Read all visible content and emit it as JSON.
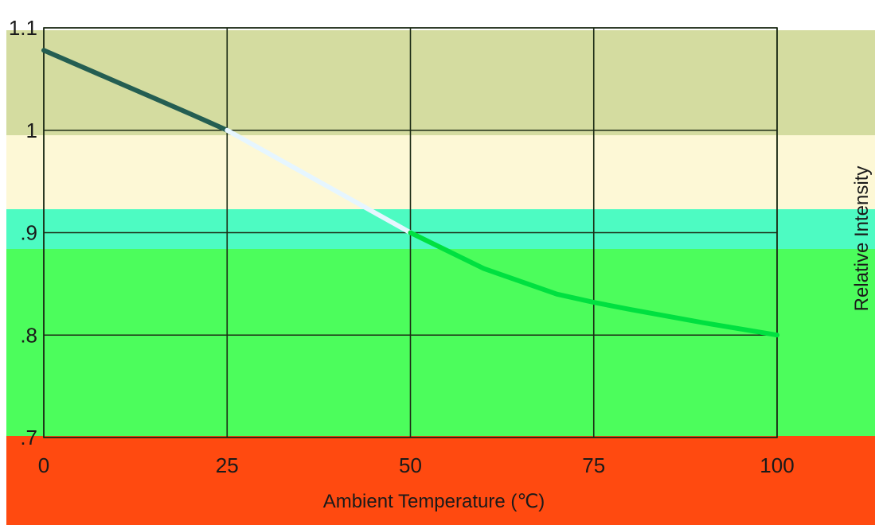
{
  "chart_data": {
    "type": "line",
    "title": "",
    "xlabel": "Ambient Temperature (℃)",
    "ylabel": "Relative Intensity",
    "xlim": [
      0,
      100
    ],
    "ylim": [
      0.7,
      1.1
    ],
    "x_ticks": [
      0,
      25,
      50,
      75,
      100
    ],
    "y_ticks": [
      0.7,
      0.8,
      0.9,
      1.0,
      1.1
    ],
    "x_tick_labels": [
      "0",
      "25",
      "50",
      "75",
      "100"
    ],
    "y_tick_labels": [
      ".7",
      ".8",
      ".9",
      "1",
      "1.1"
    ],
    "grid": true,
    "series": [
      {
        "x": [
          0,
          10,
          20,
          25,
          30,
          40,
          50,
          60,
          70,
          75,
          80,
          90,
          100
        ],
        "y": [
          1.078,
          1.047,
          1.016,
          1.0,
          0.98,
          0.94,
          0.9,
          0.865,
          0.84,
          0.832,
          0.825,
          0.812,
          0.8
        ]
      }
    ],
    "band_colors": [
      "#d4dca0",
      "#fdf8d6",
      "#4dfad4",
      "#4cfd5c",
      "#ff4a10"
    ],
    "line_colors": [
      "#245e52",
      "#e6f6ff",
      "#00e040",
      "#00d040"
    ]
  }
}
